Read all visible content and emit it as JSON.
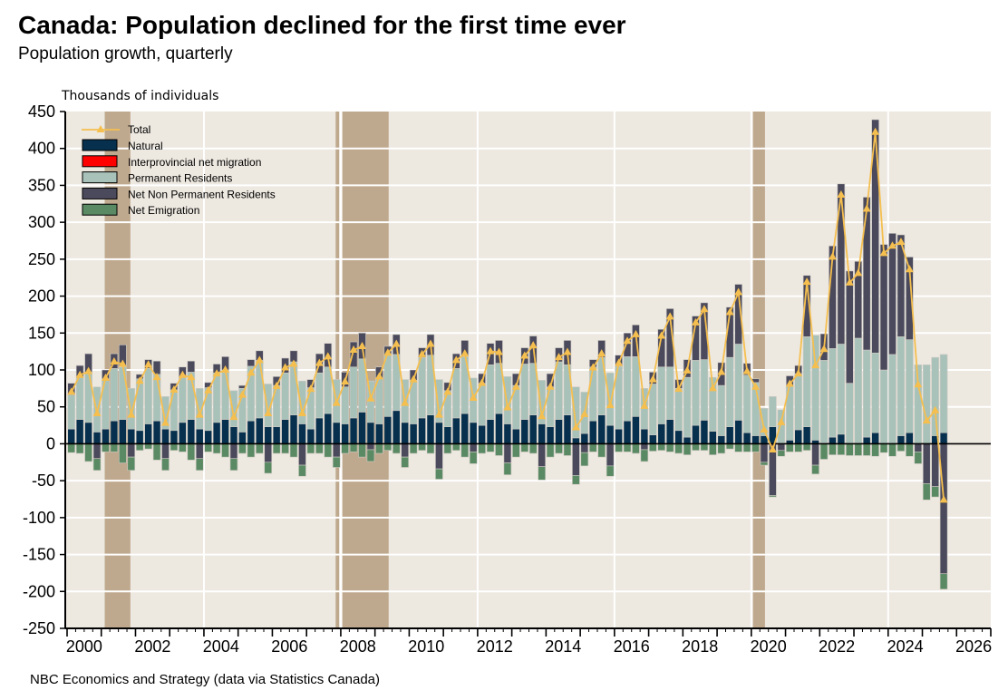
{
  "title": "Canada: Population declined for the first time ever",
  "subtitle": "Population growth, quarterly",
  "source": "NBC Economics and Strategy (data via Statistics Canada)",
  "chart_data": {
    "type": "bar",
    "subtype": "stacked bar with line overlay",
    "ylabel": "Thousands of individuals",
    "ylim": [
      -250,
      450
    ],
    "yticks": [
      450,
      400,
      350,
      300,
      250,
      200,
      150,
      100,
      50,
      0,
      -50,
      -100,
      -150,
      -200,
      -250
    ],
    "xlim": [
      2000,
      2027
    ],
    "xtick_labels": [
      "2000",
      "2002",
      "2004",
      "2006",
      "2008",
      "2010",
      "2012",
      "2014",
      "2016",
      "2018",
      "2020",
      "2022",
      "2024",
      "2026"
    ],
    "grid": "horizontal every 50; vertical every 4 years",
    "legend_placement": "top-left",
    "start_quarter": "2000Q1",
    "end_quarter": "2025Q3",
    "recession_shading": [
      [
        2001.1,
        2001.85
      ],
      [
        2007.85,
        2007.95
      ],
      [
        2008.05,
        2009.4
      ],
      [
        2020.05,
        2020.4
      ]
    ],
    "colors": {
      "Total": "#f5bf4f",
      "Natural": "#06304d",
      "Interprovincial net migration": "#ff0000",
      "Permanent Residents": "#a8c2ba",
      "Net Non Permanent Residents": "#4b4a5c",
      "Net Emigration": "#5a8a63",
      "plot_background": "#ede8e0",
      "recession": "#bfa98e"
    },
    "series": [
      {
        "name": "Natural",
        "values": [
          20,
          33,
          29,
          16,
          20,
          31,
          33,
          20,
          18,
          27,
          31,
          20,
          18,
          29,
          33,
          20,
          18,
          29,
          33,
          23,
          16,
          31,
          35,
          23,
          23,
          33,
          39,
          27,
          20,
          35,
          41,
          29,
          27,
          35,
          43,
          29,
          27,
          37,
          45,
          29,
          27,
          35,
          39,
          29,
          23,
          35,
          41,
          29,
          25,
          33,
          41,
          27,
          20,
          33,
          39,
          27,
          23,
          33,
          39,
          8,
          14,
          31,
          39,
          25,
          20,
          31,
          37,
          20,
          12,
          27,
          33,
          18,
          9,
          25,
          32,
          17,
          11,
          23,
          32,
          15,
          11,
          11,
          23,
          1,
          5,
          19,
          23,
          5,
          1,
          9,
          13,
          0,
          0,
          9,
          15,
          0,
          0,
          11,
          15,
          0,
          0,
          11,
          15
        ]
      },
      {
        "name": "Interprovincial net migration",
        "values": [
          0,
          0,
          0,
          0,
          0,
          0,
          0,
          0,
          0,
          0,
          0,
          0,
          0,
          0,
          0,
          0,
          0,
          0,
          0,
          0,
          0,
          0,
          0,
          0,
          0,
          0,
          0,
          0,
          0,
          0,
          0,
          0,
          0,
          0,
          0,
          0,
          0,
          0,
          0,
          0,
          0,
          0,
          0,
          0,
          0,
          0,
          0,
          0,
          0,
          0,
          0,
          0,
          0,
          0,
          0,
          0,
          0,
          0,
          0,
          0,
          0,
          0,
          0,
          0,
          0,
          0,
          0,
          0,
          0,
          0,
          0,
          0,
          0,
          0,
          0,
          0,
          0,
          0,
          0,
          0,
          0,
          0,
          0,
          0,
          0,
          0,
          0,
          0,
          0,
          0,
          0,
          0,
          0,
          0,
          0,
          0,
          0,
          0,
          0,
          0,
          0,
          0,
          0
        ]
      },
      {
        "name": "Permanent Residents",
        "values": [
          46,
          57,
          68,
          61,
          68,
          71,
          71,
          55,
          70,
          75,
          63,
          44,
          55,
          61,
          64,
          55,
          58,
          67,
          67,
          49,
          59,
          74,
          78,
          58,
          56,
          63,
          72,
          58,
          56,
          61,
          63,
          58,
          50,
          69,
          72,
          56,
          62,
          83,
          76,
          58,
          59,
          82,
          81,
          58,
          49,
          67,
          77,
          60,
          57,
          74,
          68,
          64,
          59,
          75,
          70,
          59,
          54,
          78,
          68,
          69,
          56,
          73,
          78,
          71,
          85,
          87,
          81,
          55,
          69,
          77,
          71,
          57,
          81,
          88,
          82,
          73,
          68,
          94,
          103,
          78,
          72,
          37,
          41,
          45,
          74,
          76,
          122,
          142,
          112,
          120,
          122,
          82,
          143,
          118,
          108,
          100,
          121,
          134,
          126,
          107,
          107,
          106,
          106
        ]
      },
      {
        "name": "Net Non Permanent Residents",
        "values": [
          16,
          16,
          25,
          -20,
          12,
          20,
          30,
          -18,
          6,
          12,
          18,
          -20,
          9,
          14,
          15,
          -20,
          7,
          12,
          18,
          -20,
          4,
          9,
          13,
          -25,
          12,
          20,
          15,
          -29,
          11,
          26,
          32,
          -18,
          20,
          34,
          35,
          -8,
          15,
          12,
          27,
          -18,
          14,
          13,
          28,
          -34,
          11,
          20,
          22,
          -11,
          13,
          29,
          31,
          -26,
          16,
          22,
          37,
          -31,
          18,
          19,
          33,
          -43,
          -12,
          10,
          23,
          -30,
          15,
          32,
          43,
          -8,
          16,
          51,
          79,
          12,
          24,
          60,
          77,
          0,
          31,
          68,
          81,
          16,
          5,
          -25,
          -70,
          -9,
          13,
          11,
          83,
          -29,
          36,
          139,
          217,
          152,
          104,
          207,
          316,
          170,
          164,
          138,
          112,
          -11,
          -54,
          -58,
          -176
        ]
      },
      {
        "name": "Net Emigration",
        "values": [
          -12,
          -13,
          -24,
          -16,
          -11,
          -11,
          -26,
          -18,
          -9,
          -7,
          -22,
          -16,
          -9,
          -11,
          -22,
          -16,
          -11,
          -13,
          -18,
          -16,
          -13,
          -18,
          -13,
          -15,
          -13,
          -13,
          -18,
          -15,
          -13,
          -13,
          -18,
          -14,
          -13,
          -11,
          -18,
          -16,
          -13,
          -9,
          -13,
          -14,
          -13,
          -9,
          -13,
          -14,
          -13,
          -9,
          -18,
          -16,
          -13,
          -11,
          -16,
          -16,
          -18,
          -11,
          -13,
          -18,
          -18,
          -13,
          -16,
          -12,
          -18,
          -11,
          -18,
          -14,
          -11,
          -11,
          -13,
          -16,
          -10,
          -9,
          -11,
          -13,
          -15,
          -9,
          -9,
          -15,
          -13,
          -7,
          -11,
          -11,
          -11,
          -4,
          -2,
          -8,
          -11,
          -11,
          -9,
          -12,
          -21,
          -15,
          -15,
          -16,
          -16,
          -16,
          -17,
          -12,
          -17,
          -10,
          -17,
          -16,
          -22,
          -14,
          -21
        ]
      },
      {
        "name": "Total",
        "type": "line",
        "values": [
          70,
          93,
          98,
          41,
          89,
          111,
          108,
          39,
          85,
          107,
          90,
          28,
          73,
          93,
          90,
          39,
          72,
          95,
          100,
          36,
          66,
          96,
          113,
          41,
          78,
          103,
          108,
          41,
          74,
          109,
          118,
          55,
          84,
          127,
          132,
          61,
          91,
          123,
          135,
          55,
          87,
          121,
          135,
          39,
          70,
          113,
          122,
          62,
          82,
          125,
          124,
          49,
          77,
          119,
          133,
          37,
          77,
          117,
          124,
          22,
          40,
          103,
          122,
          52,
          109,
          139,
          148,
          51,
          87,
          146,
          172,
          74,
          99,
          164,
          182,
          75,
          97,
          178,
          205,
          98,
          77,
          19,
          -8,
          29,
          81,
          95,
          219,
          106,
          128,
          253,
          337,
          218,
          231,
          318,
          422,
          258,
          268,
          273,
          236,
          80,
          31,
          45,
          -76
        ]
      }
    ]
  }
}
